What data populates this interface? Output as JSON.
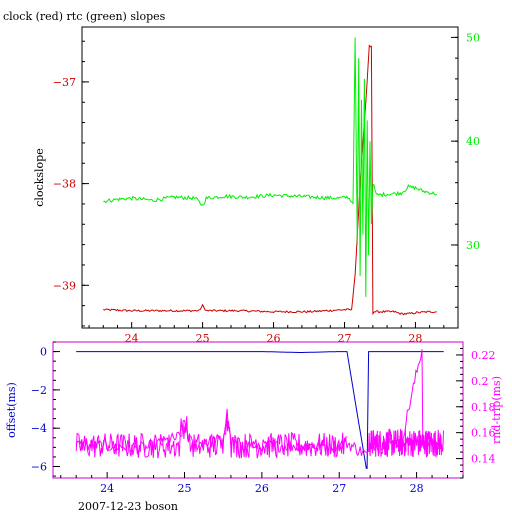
{
  "title": "clock (red) rtc (green) slopes",
  "footer": "2007-12-23 boson",
  "colors": {
    "clock": "#cc0000",
    "rtc": "#00ee00",
    "offset": "#0000cc",
    "rndtrip": "#ff00ff",
    "axis": "#000000"
  },
  "chart_data": [
    {
      "type": "line",
      "name": "slopes",
      "ylabel_left": "clockslope",
      "ylabel_right": "",
      "x_ticks": [
        "24",
        "25",
        "26",
        "27",
        "28"
      ],
      "y_left_ticks": [
        "−37",
        "−38",
        "−39"
      ],
      "y_right_ticks": [
        "50",
        "40",
        "30"
      ],
      "xlim": [
        23.3,
        28.6
      ],
      "ylim_left": [
        -39.42,
        -36.46
      ],
      "ylim_right": [
        22.0,
        51.0
      ],
      "series": [
        {
          "axis": "left",
          "color": "#cc0000",
          "x": [
            23.6,
            24.0,
            24.5,
            24.95,
            25.0,
            25.05,
            25.5,
            26.0,
            26.5,
            27.0,
            27.1,
            27.15,
            27.22,
            27.3,
            27.35,
            27.38,
            27.4,
            27.42,
            27.5,
            27.7,
            27.8,
            27.9,
            28.0,
            28.2,
            28.3
          ],
          "y": [
            -39.24,
            -39.25,
            -39.25,
            -39.25,
            -39.2,
            -39.25,
            -39.25,
            -39.26,
            -39.26,
            -39.24,
            -39.24,
            -38.9,
            -38.0,
            -37.2,
            -36.65,
            -36.65,
            -39.27,
            -39.26,
            -39.26,
            -39.26,
            -39.28,
            -39.28,
            -39.27,
            -39.26,
            -39.26
          ]
        },
        {
          "axis": "right",
          "color": "#00ee00",
          "x": [
            23.6,
            23.8,
            24.0,
            24.3,
            24.6,
            24.9,
            25.0,
            25.05,
            25.3,
            25.6,
            26.0,
            26.3,
            26.6,
            26.9,
            27.05,
            27.12,
            27.15,
            27.18,
            27.2,
            27.22,
            27.24,
            27.26,
            27.28,
            27.3,
            27.32,
            27.34,
            27.36,
            27.38,
            27.4,
            27.45,
            27.6,
            27.8,
            27.9,
            28.0,
            28.1,
            28.3
          ],
          "y": [
            34.2,
            34.4,
            34.5,
            34.3,
            34.6,
            34.5,
            33.8,
            34.5,
            34.7,
            34.6,
            34.8,
            34.7,
            34.6,
            34.5,
            34.6,
            34.0,
            50.0,
            30.0,
            48.0,
            27.0,
            44.0,
            31.0,
            46.0,
            25.0,
            42.0,
            29.0,
            40.0,
            32.0,
            36.0,
            34.8,
            34.9,
            35.0,
            35.6,
            35.5,
            35.2,
            34.9
          ]
        }
      ]
    },
    {
      "type": "line",
      "name": "offset-rndtrip",
      "ylabel_left": "offset(ms)",
      "ylabel_right": "rnd-trip(ms)",
      "x_ticks": [
        "24",
        "25",
        "26",
        "27",
        "28"
      ],
      "y_left_ticks": [
        "0",
        "−2",
        "−4",
        "−6"
      ],
      "y_right_ticks": [
        "0.22",
        "0.2",
        "0.18",
        "0.16",
        "0.14"
      ],
      "xlim": [
        23.3,
        28.6
      ],
      "ylim_left": [
        -6.6,
        0.5
      ],
      "ylim_right": [
        0.125,
        0.23
      ],
      "series": [
        {
          "axis": "left",
          "color": "#0000cc",
          "x": [
            23.6,
            24.0,
            24.5,
            25.0,
            25.5,
            26.0,
            26.5,
            27.0,
            27.1,
            27.35,
            27.36,
            27.38,
            27.5,
            28.0,
            28.35
          ],
          "y": [
            0.0,
            0.0,
            0.0,
            0.0,
            0.0,
            0.0,
            -0.05,
            0.0,
            0.0,
            -6.1,
            -6.1,
            0.0,
            0.0,
            0.0,
            0.0
          ],
          "noise": 0
        },
        {
          "axis": "right",
          "color": "#ff00ff",
          "x": [
            23.6,
            24.0,
            24.5,
            24.95,
            25.0,
            25.1,
            25.5,
            25.55,
            25.6,
            26.0,
            26.5,
            27.0,
            27.1,
            27.38,
            27.4,
            27.8,
            28.07,
            28.08,
            28.3
          ],
          "y": [
            0.15,
            0.15,
            0.148,
            0.157,
            0.168,
            0.15,
            0.155,
            0.175,
            0.152,
            0.15,
            0.15,
            0.15,
            0.152,
            0.142,
            0.152,
            0.152,
            0.225,
            0.152,
            0.152
          ]
        }
      ]
    }
  ]
}
